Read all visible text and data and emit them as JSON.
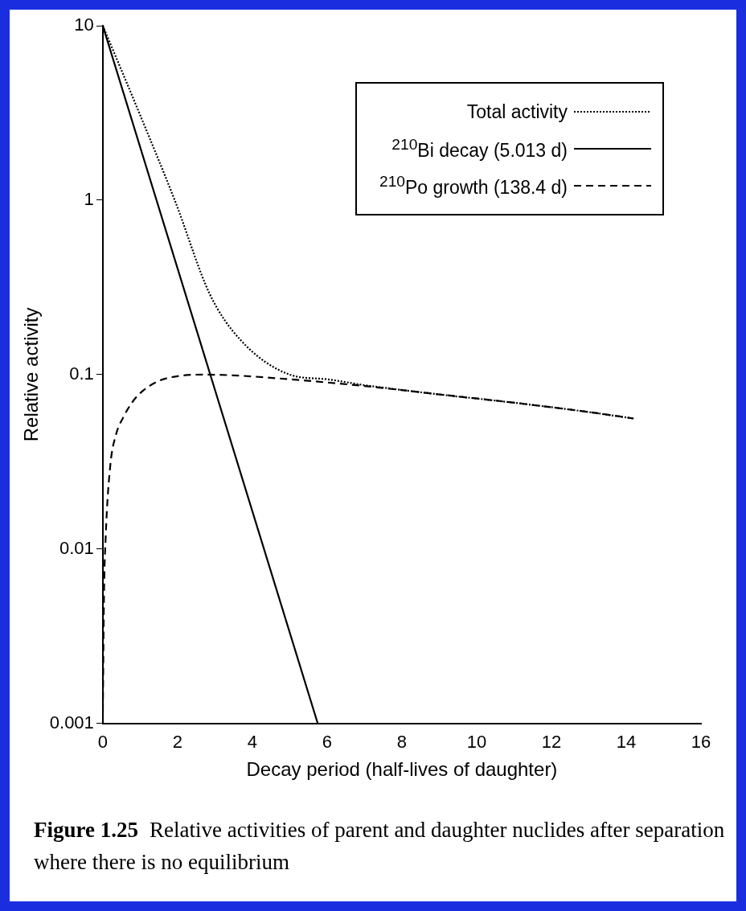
{
  "chart_data": {
    "type": "line",
    "xlabel": "Decay period (half-lives of daughter)",
    "ylabel": "Relative activity",
    "log": "y",
    "xlim": [
      0,
      16
    ],
    "xticks": [
      0,
      2,
      4,
      6,
      8,
      10,
      12,
      14,
      16
    ],
    "ylim": [
      0.001,
      10
    ],
    "yticks": [
      0.001,
      0.01,
      0.1,
      1,
      10
    ],
    "grid": false,
    "legend": "top right",
    "marker": "none",
    "series": [
      {
        "name": "Total activity",
        "color": "#000000",
        "line_style": "dotted",
        "x": [
          0,
          0.94,
          1.94,
          2.86,
          3.66,
          5,
          6,
          7,
          9,
          11,
          13,
          14.2
        ],
        "values": [
          10,
          3.3,
          0.98,
          0.29,
          0.16,
          0.1,
          0.094,
          0.087,
          0.077,
          0.069,
          0.061,
          0.056
        ]
      },
      {
        "name": "$^{210}$Bi decay (5.013 d)",
        "color": "#000000",
        "line_style": "solid",
        "x": [
          0,
          5.75
        ],
        "values": [
          10,
          0.001
        ]
      },
      {
        "name": "$^{210}$Po growth (138.4 d)",
        "color": "#000000",
        "line_style": "dashed",
        "x": [
          0,
          0.03,
          0.08,
          0.2,
          0.35,
          0.55,
          0.8,
          1.05,
          1.5,
          2,
          2.7,
          3.5,
          5,
          7,
          9,
          11,
          13,
          14.2
        ],
        "values": [
          0.001,
          0.005,
          0.012,
          0.03,
          0.045,
          0.057,
          0.07,
          0.08,
          0.092,
          0.098,
          0.1,
          0.099,
          0.094,
          0.086,
          0.077,
          0.069,
          0.061,
          0.056
        ]
      }
    ],
    "annotations": [
      "Figure 1.25",
      "Relative activities of parent and daughter nuclides after separation where there is no equilibrium"
    ]
  }
}
